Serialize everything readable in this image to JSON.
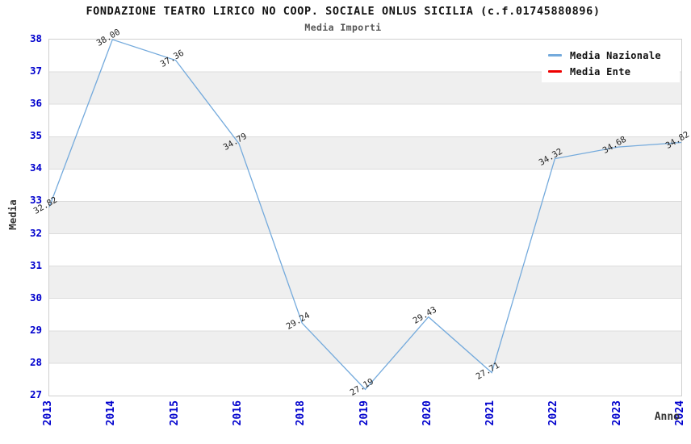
{
  "chart_data": {
    "type": "line",
    "title": "FONDAZIONE TEATRO LIRICO NO COOP. SOCIALE ONLUS SICILIA (c.f.01745880896)",
    "subtitle": "Media Importi",
    "xlabel": "Anno",
    "ylabel": "Media",
    "categories": [
      "2013",
      "2014",
      "2015",
      "2016",
      "2018",
      "2019",
      "2020",
      "2021",
      "2022",
      "2023",
      "2024"
    ],
    "series": [
      {
        "name": "Media Nazionale",
        "color": "#74aadc",
        "values": [
          32.82,
          38.0,
          37.36,
          34.79,
          29.24,
          27.19,
          29.43,
          27.71,
          34.32,
          34.68,
          34.82
        ]
      },
      {
        "name": "Media Ente",
        "color": "#ee0000",
        "values": []
      }
    ],
    "ylim": [
      27,
      38
    ],
    "y_ticks": [
      27,
      28,
      29,
      30,
      31,
      32,
      33,
      34,
      35,
      36,
      37,
      38
    ],
    "grid": true,
    "legend_position": "top-right",
    "band_colors": [
      "#ffffff",
      "#efefef"
    ],
    "data_label_decimals": 2
  },
  "colors": {
    "tick_label": "#0000cd",
    "grid": "#dcdcdc",
    "plot_border": "#cfcfcf",
    "band": "#efefef",
    "line_national": "#74aadc",
    "line_ente": "#ee0000",
    "text": "#222222"
  }
}
